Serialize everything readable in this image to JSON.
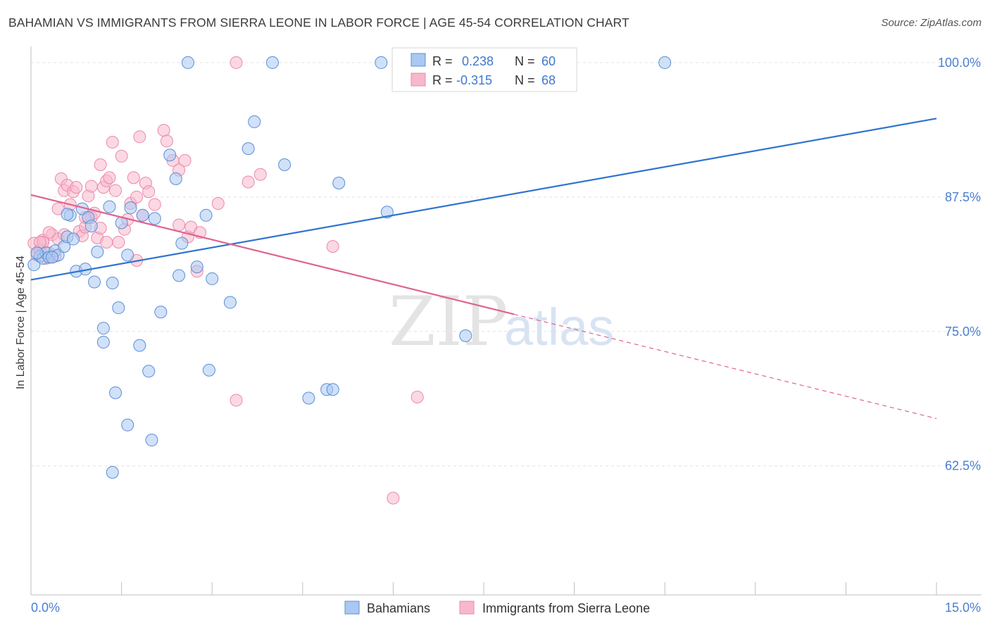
{
  "title": "BAHAMIAN VS IMMIGRANTS FROM SIERRA LEONE IN LABOR FORCE | AGE 45-54 CORRELATION CHART",
  "source": "Source: ZipAtlas.com",
  "watermark": {
    "zip": "ZIP",
    "atlas": "atlas"
  },
  "legend_box": {
    "rows": [
      {
        "r_label": "R =",
        "r_value": "0.238",
        "n_label": "N =",
        "n_value": "60"
      },
      {
        "r_label": "R =",
        "r_value": "-0.315",
        "n_label": "N =",
        "n_value": "68"
      }
    ]
  },
  "bottom_legend": [
    "Bahamians",
    "Immigrants from Sierra Leone"
  ],
  "colors": {
    "blue_fill": "#a9c8f2",
    "blue_stroke": "#5a8fd6",
    "blue_line": "#2f74d0",
    "pink_fill": "#f7b8cc",
    "pink_stroke": "#e98aaa",
    "pink_line": "#e0628f",
    "tick_label": "#4a7fcf",
    "grid": "#e2e2e2"
  },
  "chart_data": {
    "type": "scatter",
    "title": "BAHAMIAN VS IMMIGRANTS FROM SIERRA LEONE IN LABOR FORCE | AGE 45-54 CORRELATION CHART",
    "xlabel": "",
    "ylabel": "In Labor Force | Age 45-54",
    "xlim": [
      0,
      15
    ],
    "ylim": [
      50.5,
      101.5
    ],
    "x_tick_labels": [
      {
        "value": 0,
        "label": "0.0%"
      },
      {
        "value": 15,
        "label": "15.0%"
      }
    ],
    "y_tick_labels": [
      {
        "value": 100,
        "label": "100.0%"
      },
      {
        "value": 87.5,
        "label": "87.5%"
      },
      {
        "value": 75,
        "label": "75.0%"
      },
      {
        "value": 62.5,
        "label": "62.5%"
      }
    ],
    "grid": true,
    "legend": "bottom-center",
    "series": [
      {
        "name": "Bahamians",
        "color": "#a9c8f2",
        "r": 0.238,
        "n": 60,
        "trend": {
          "x": [
            0,
            15
          ],
          "y": [
            79.8,
            94.8
          ]
        },
        "points": [
          [
            0.05,
            81.2
          ],
          [
            0.15,
            82.0
          ],
          [
            0.2,
            81.8
          ],
          [
            0.25,
            82.3
          ],
          [
            0.3,
            81.9
          ],
          [
            0.4,
            82.5
          ],
          [
            0.45,
            82.1
          ],
          [
            0.55,
            82.9
          ],
          [
            0.6,
            83.8
          ],
          [
            0.65,
            85.8
          ],
          [
            0.7,
            83.6
          ],
          [
            0.75,
            80.6
          ],
          [
            0.85,
            86.4
          ],
          [
            0.9,
            80.8
          ],
          [
            0.95,
            85.6
          ],
          [
            1.05,
            79.6
          ],
          [
            1.1,
            82.4
          ],
          [
            1.2,
            75.3
          ],
          [
            1.2,
            74.0
          ],
          [
            1.3,
            86.6
          ],
          [
            1.35,
            79.5
          ],
          [
            1.4,
            69.3
          ],
          [
            1.45,
            77.2
          ],
          [
            1.5,
            85.1
          ],
          [
            1.6,
            66.3
          ],
          [
            1.6,
            82.1
          ],
          [
            1.65,
            86.5
          ],
          [
            1.8,
            73.7
          ],
          [
            1.85,
            85.8
          ],
          [
            1.95,
            71.3
          ],
          [
            2.0,
            64.9
          ],
          [
            2.05,
            85.5
          ],
          [
            2.15,
            76.8
          ],
          [
            2.3,
            91.4
          ],
          [
            2.4,
            89.2
          ],
          [
            2.45,
            80.2
          ],
          [
            2.5,
            83.2
          ],
          [
            2.6,
            100.0
          ],
          [
            2.75,
            81.0
          ],
          [
            2.9,
            85.8
          ],
          [
            2.95,
            71.4
          ],
          [
            3.0,
            79.9
          ],
          [
            3.3,
            77.7
          ],
          [
            3.6,
            92.0
          ],
          [
            3.7,
            94.5
          ],
          [
            4.0,
            100.0
          ],
          [
            4.2,
            90.5
          ],
          [
            4.6,
            68.8
          ],
          [
            4.9,
            69.6
          ],
          [
            5.0,
            69.6
          ],
          [
            5.1,
            88.8
          ],
          [
            5.8,
            100.0
          ],
          [
            5.9,
            86.1
          ],
          [
            7.2,
            74.6
          ],
          [
            10.5,
            100.0
          ],
          [
            1.35,
            61.9
          ],
          [
            0.1,
            82.3
          ],
          [
            0.35,
            81.9
          ],
          [
            0.6,
            85.9
          ],
          [
            1.0,
            84.8
          ]
        ]
      },
      {
        "name": "Immigrants from Sierra Leone",
        "color": "#f7b8cc",
        "r": -0.315,
        "n": 68,
        "trend": {
          "x": [
            0,
            8
          ],
          "y": [
            87.7,
            76.6
          ]
        },
        "trend_dashed": {
          "x": [
            8,
            15
          ],
          "y": [
            76.6,
            66.9
          ]
        },
        "points": [
          [
            0.05,
            83.2
          ],
          [
            0.1,
            82.1
          ],
          [
            0.15,
            82.6
          ],
          [
            0.2,
            83.5
          ],
          [
            0.25,
            81.8
          ],
          [
            0.3,
            82.3
          ],
          [
            0.35,
            84.0
          ],
          [
            0.4,
            82.0
          ],
          [
            0.45,
            86.4
          ],
          [
            0.45,
            83.6
          ],
          [
            0.5,
            89.2
          ],
          [
            0.55,
            88.1
          ],
          [
            0.6,
            88.6
          ],
          [
            0.65,
            86.8
          ],
          [
            0.7,
            88.0
          ],
          [
            0.75,
            88.4
          ],
          [
            0.8,
            84.3
          ],
          [
            0.85,
            83.9
          ],
          [
            0.9,
            84.7
          ],
          [
            0.95,
            87.6
          ],
          [
            1.0,
            85.6
          ],
          [
            1.05,
            86.0
          ],
          [
            1.1,
            83.7
          ],
          [
            1.15,
            90.5
          ],
          [
            1.2,
            88.4
          ],
          [
            1.25,
            89.0
          ],
          [
            1.3,
            89.3
          ],
          [
            1.35,
            92.6
          ],
          [
            1.4,
            88.1
          ],
          [
            1.45,
            83.3
          ],
          [
            1.5,
            91.3
          ],
          [
            1.55,
            84.5
          ],
          [
            1.6,
            85.4
          ],
          [
            1.65,
            86.9
          ],
          [
            1.7,
            89.3
          ],
          [
            1.75,
            87.5
          ],
          [
            1.8,
            93.1
          ],
          [
            1.85,
            85.8
          ],
          [
            1.9,
            88.8
          ],
          [
            1.95,
            88.0
          ],
          [
            2.05,
            86.8
          ],
          [
            2.2,
            93.7
          ],
          [
            2.25,
            92.7
          ],
          [
            2.35,
            90.9
          ],
          [
            2.45,
            90.0
          ],
          [
            2.55,
            90.9
          ],
          [
            2.6,
            83.8
          ],
          [
            2.65,
            84.7
          ],
          [
            2.75,
            80.6
          ],
          [
            2.8,
            84.2
          ],
          [
            3.1,
            86.9
          ],
          [
            3.4,
            68.6
          ],
          [
            3.6,
            88.9
          ],
          [
            3.8,
            89.6
          ],
          [
            3.4,
            100.0
          ],
          [
            5.0,
            82.9
          ],
          [
            6.0,
            59.5
          ],
          [
            6.4,
            68.9
          ],
          [
            0.2,
            83.3
          ],
          [
            0.3,
            84.2
          ],
          [
            0.55,
            84.0
          ],
          [
            0.9,
            85.6
          ],
          [
            1.0,
            88.5
          ],
          [
            1.15,
            84.6
          ],
          [
            1.25,
            83.3
          ],
          [
            1.75,
            81.6
          ],
          [
            2.45,
            84.9
          ],
          [
            0.15,
            83.3
          ]
        ]
      }
    ]
  }
}
